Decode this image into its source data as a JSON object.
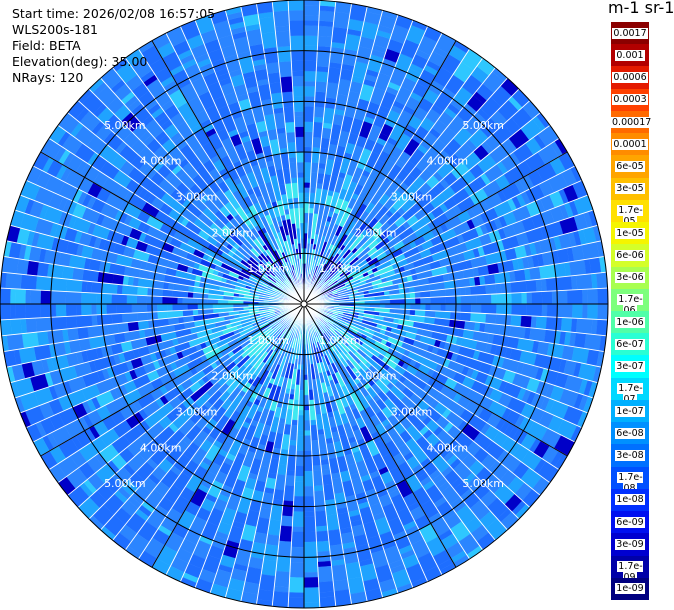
{
  "info": {
    "start_time": "Start time: 2026/02/08 16:57:05",
    "instrument": "WLS200s-181",
    "field": "Field: BETA",
    "elevation": "Elevation(deg): 35.00",
    "nrays": "NRays: 120"
  },
  "colorbar": {
    "title": "m-1 sr-1",
    "labels": [
      "0.0017",
      "0.001",
      "0.0006",
      "0.0003",
      "0.00017",
      "0.0001",
      "6e-05",
      "3e-05",
      "1.7e-05",
      "1e-05",
      "6e-06",
      "3e-06",
      "1.7e-06",
      "1e-06",
      "6e-07",
      "3e-07",
      "1.7e-07",
      "1e-07",
      "6e-08",
      "3e-08",
      "1.7e-08",
      "1e-08",
      "6e-09",
      "3e-09",
      "1.7e-09",
      "1e-09"
    ],
    "colors": [
      "#8b0000",
      "#b20000",
      "#e41a00",
      "#ff4000",
      "#ff6a00",
      "#ff8c00",
      "#ffa500",
      "#ffc000",
      "#ffe000",
      "#f5f500",
      "#d4ff2a",
      "#a8ff50",
      "#7dff7d",
      "#50ffa8",
      "#2affd4",
      "#00ffff",
      "#00d8ff",
      "#00b0ff",
      "#0090ff",
      "#0070ff",
      "#0050ff",
      "#0030ff",
      "#0010f0",
      "#0000d0",
      "#0000a8",
      "#000080"
    ]
  },
  "chart_data": {
    "type": "heatmap",
    "projection": "polar (PPI)",
    "range_unit": "km",
    "range_rings_km": [
      1.0,
      2.0,
      3.0,
      4.0,
      5.0
    ],
    "ring_labels": [
      "1.00km",
      "2.00km",
      "3.00km",
      "4.00km",
      "5.00km"
    ],
    "max_range_km": 6.0,
    "radial_lines_deg": [
      0,
      30,
      60,
      90,
      120,
      150,
      180,
      210,
      240,
      270,
      300,
      330
    ],
    "nrays": 120,
    "dominant_value_range": [
      "3e-08",
      "6e-08"
    ],
    "near_range_value_range": [
      "1e-07",
      "3e-07"
    ],
    "grid": true
  }
}
